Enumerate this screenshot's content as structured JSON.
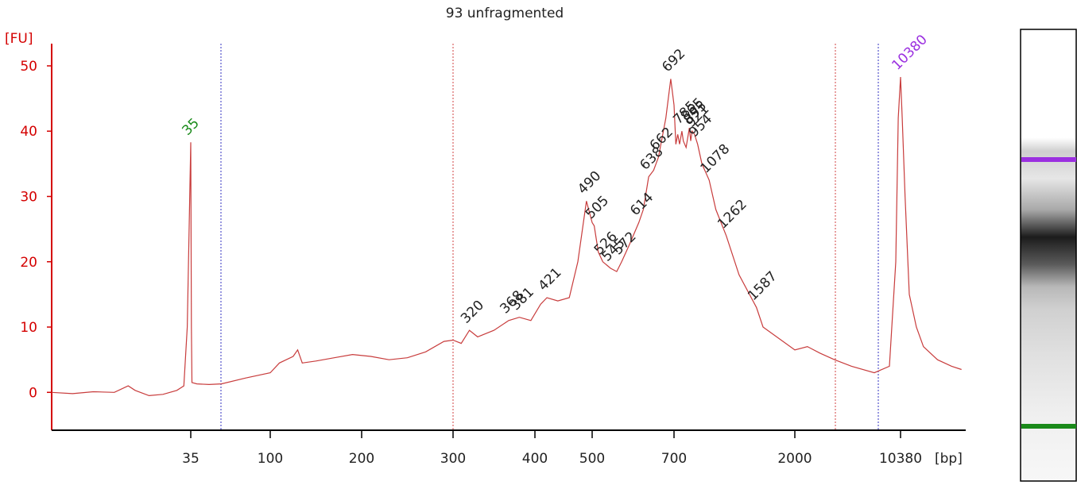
{
  "chart_data": {
    "type": "line",
    "title": "93 unfragmented",
    "y_label": "[FU]",
    "x_label": "[bp]",
    "ylim": [
      -5.8,
      53.4
    ],
    "yticks": [
      0,
      10,
      20,
      30,
      40,
      50
    ],
    "xlim": [
      15,
      15000
    ],
    "xticks": [
      35,
      100,
      200,
      300,
      400,
      500,
      700,
      2000,
      10380
    ],
    "color": "#c83c3c",
    "axis_color": "#d40000",
    "x": [
      15,
      18,
      21,
      24,
      26,
      27,
      29,
      31,
      33,
      34,
      34.5,
      35,
      35.5,
      36,
      40,
      50,
      60,
      80,
      100,
      110,
      125,
      130,
      135,
      150,
      170,
      190,
      210,
      230,
      250,
      270,
      290,
      300,
      310,
      320,
      330,
      350,
      368,
      381,
      395,
      410,
      421,
      440,
      460,
      475,
      490,
      500,
      505,
      515,
      526,
      545,
      560,
      572,
      590,
      614,
      625,
      638,
      650,
      662,
      680,
      692,
      700,
      720,
      740,
      760,
      785,
      800,
      830,
      865,
      880,
      895,
      921,
      954,
      1000,
      1078,
      1150,
      1262,
      1400,
      1587,
      1658,
      2000,
      3000,
      4000,
      5150,
      6500,
      8300,
      9500,
      10000,
      10200,
      10380,
      10500,
      10700,
      11000,
      11500,
      12000,
      13000,
      14000,
      14700
    ],
    "values": [
      0,
      -0.2,
      0.1,
      0,
      1.0,
      0.3,
      -0.5,
      -0.3,
      0.3,
      1.0,
      10,
      38.3,
      10,
      1.5,
      1.3,
      1.2,
      1.3,
      2.2,
      3.0,
      4.5,
      5.5,
      6.5,
      4.5,
      4.8,
      5.3,
      5.8,
      5.5,
      5.0,
      5.3,
      6.2,
      7.8,
      8.0,
      7.5,
      9.5,
      8.5,
      9.5,
      11,
      11.5,
      11,
      13.5,
      14.5,
      14,
      14.5,
      20,
      29.3,
      26,
      25.5,
      21.5,
      20,
      19,
      18.5,
      20,
      22.5,
      26,
      28,
      33,
      34,
      36,
      42,
      48,
      44,
      38,
      39.5,
      38,
      40,
      38.5,
      37.5,
      40.5,
      38.5,
      40,
      39.5,
      38,
      35,
      32.5,
      28,
      24,
      18,
      13,
      10,
      6.5,
      7,
      6,
      5,
      4,
      3,
      4,
      20,
      42,
      48.3,
      42,
      30,
      15,
      10,
      7,
      5,
      4,
      3.5
    ],
    "peaks": [
      35,
      320,
      368,
      381,
      421,
      490,
      505,
      526,
      545,
      572,
      614,
      638,
      662,
      692,
      785,
      865,
      895,
      921,
      954,
      1078,
      1262,
      1587,
      10380
    ],
    "lower_marker_color": "#1a8a1a",
    "upper_marker_color": "#9b30e0",
    "peak_label_color": "#222222"
  }
}
